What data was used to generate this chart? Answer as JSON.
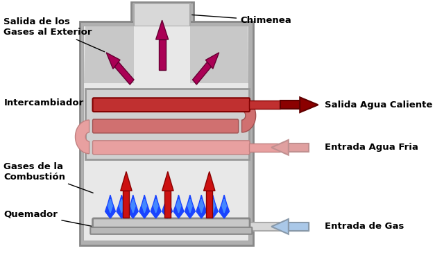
{
  "bg_color": "#ffffff",
  "body_outer_color": "#b0b0b0",
  "body_inner_color": "#dcdcdc",
  "body_inner2_color": "#e8e8e8",
  "chimney_color": "#c0c0c0",
  "hx_box_color": "#c8c8c8",
  "hx_box_edge": "#999999",
  "hot_pipe_color": "#c03030",
  "hot_pipe_edge": "#800000",
  "warm_pipe_color": "#d07070",
  "warm_pipe_edge": "#a05050",
  "cold_pipe_color": "#e8a0a0",
  "cold_pipe_edge": "#c08080",
  "combustion_arrow_color": "#cc1111",
  "chimney_arrow_color": "#aa0055",
  "hot_water_arrow_color": "#8b0000",
  "cold_water_arrow_color": "#e0a0a0",
  "gas_arrow_color": "#aac8e8",
  "flame_outer": "#1a44ff",
  "flame_inner": "#4488ff",
  "burner_color": "#c0c0c0",
  "burner_edge": "#888888",
  "labels": {
    "chimenea": {
      "text": "Chimenea",
      "fontsize": 9.5,
      "fontweight": "bold"
    },
    "salida_gases": {
      "text": "Salida de los\nGases al Exterior",
      "fontsize": 9.5,
      "fontweight": "bold"
    },
    "intercambiador": {
      "text": "Intercambiador",
      "fontsize": 9.5,
      "fontweight": "bold"
    },
    "gases_combustion": {
      "text": "Gases de la\nCombustión",
      "fontsize": 9.5,
      "fontweight": "bold"
    },
    "quemador": {
      "text": "Quemador",
      "fontsize": 9.5,
      "fontweight": "bold"
    },
    "salida_agua_caliente": {
      "text": "Salida Agua Caliente",
      "fontsize": 9.5,
      "fontweight": "bold"
    },
    "entrada_agua_fria": {
      "text": "Entrada Agua Fria",
      "fontsize": 9.5,
      "fontweight": "bold"
    },
    "entrada_gas": {
      "text": "Entrada de Gas",
      "fontsize": 9.5,
      "fontweight": "bold"
    }
  }
}
